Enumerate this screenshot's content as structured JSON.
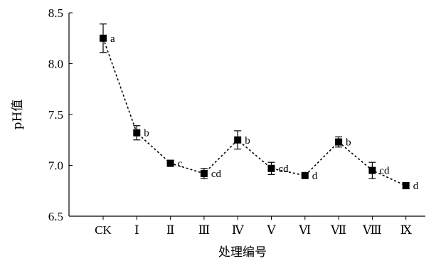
{
  "chart_data": {
    "type": "line",
    "xlabel": "处理编号",
    "ylabel": "pH值",
    "ylim": [
      6.5,
      8.5
    ],
    "yticks": [
      "6.5",
      "7.0",
      "7.5",
      "8.0",
      "8.5"
    ],
    "grid": false,
    "legend": "none",
    "categories": [
      "CK",
      "Ⅰ",
      "Ⅱ",
      "Ⅲ",
      "Ⅳ",
      "Ⅴ",
      "Ⅵ",
      "Ⅶ",
      "Ⅷ",
      "Ⅸ"
    ],
    "series": [
      {
        "values": [
          8.25,
          7.32,
          7.02,
          6.92,
          7.25,
          6.97,
          6.9,
          7.23,
          6.95,
          6.8
        ],
        "errors": [
          0.14,
          0.07,
          0.03,
          0.05,
          0.09,
          0.06,
          0.02,
          0.05,
          0.08,
          0.03
        ],
        "significance": [
          "a",
          "b",
          "c",
          "cd",
          "b",
          "cd",
          "d",
          "b",
          "cd",
          "d"
        ]
      }
    ]
  }
}
